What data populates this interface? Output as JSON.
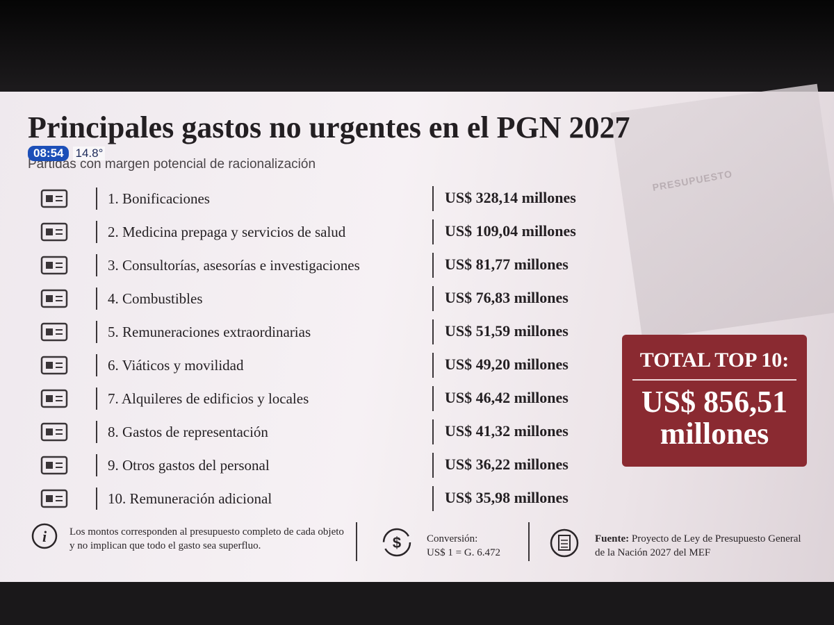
{
  "header": {
    "title": "Principales gastos no urgentes en el PGN 2027",
    "subtitle": "Partidas con margen potencial de racionalización"
  },
  "overlay": {
    "time": "08:54",
    "temperature": "14.8°"
  },
  "background_label": "PRESUPUESTO",
  "items": [
    {
      "label": "1. Bonificaciones",
      "amount": "US$ 328,14 millones"
    },
    {
      "label": "2. Medicina prepaga y servicios de salud",
      "amount": "US$ 109,04 millones"
    },
    {
      "label": "3. Consultorías, asesorías e investigaciones",
      "amount": "US$ 81,77 millones"
    },
    {
      "label": "4. Combustibles",
      "amount": "US$ 76,83 millones"
    },
    {
      "label": "5. Remuneraciones extraordinarias",
      "amount": "US$ 51,59 millones"
    },
    {
      "label": "6. Viáticos y movilidad",
      "amount": "US$ 49,20 millones"
    },
    {
      "label": "7. Alquileres de edificios y locales",
      "amount": "US$ 46,42 millones"
    },
    {
      "label": "8. Gastos de representación",
      "amount": "US$ 41,32 millones"
    },
    {
      "label": "9. Otros gastos del personal",
      "amount": "US$ 36,22 millones"
    },
    {
      "label": "10. Remuneración adicional",
      "amount": "US$ 35,98 millones"
    }
  ],
  "total": {
    "label": "TOTAL TOP 10:",
    "value": "US$ 856,51 millones"
  },
  "footer": {
    "note": "Los montos corresponden al presupuesto completo de cada objeto y no implican que todo el gasto sea superfluo.",
    "conversion_label": "Conversión:",
    "conversion_value": "US$ 1 = G. 6.472",
    "source_label": "Fuente:",
    "source_text": "Proyecto de Ley de Presupuesto General de la Nación 2027 del MEF"
  }
}
